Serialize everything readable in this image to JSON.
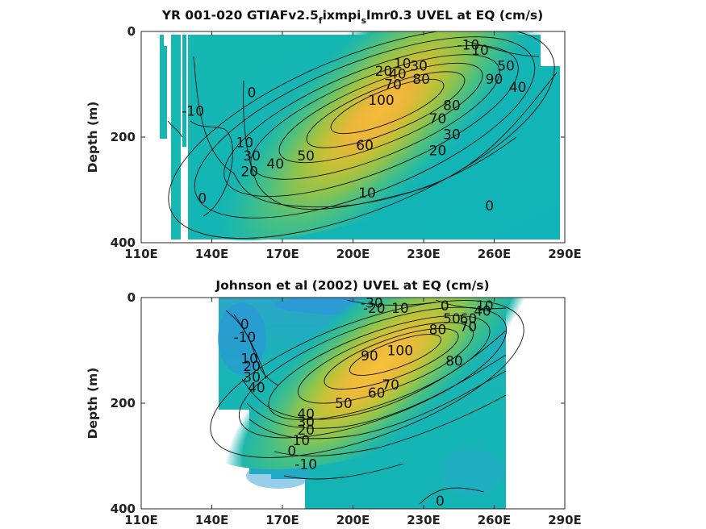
{
  "chart_data": [
    {
      "type": "contour",
      "title": "YR 001-020 GTIAFv2.5",
      "title_sub": "f",
      "title_mid": "ixmpi",
      "title_sub2": "s",
      "title_end": "lmr0.3 UVEL at EQ (cm/s)",
      "ylabel": "Depth (m)",
      "xlim": [
        110,
        290
      ],
      "ylim": [
        0,
        400
      ],
      "y_reversed": true,
      "xticks": [
        "110E",
        "140E",
        "170E",
        "200E",
        "230E",
        "260E",
        "290E"
      ],
      "yticks": [
        "0",
        "200",
        "400"
      ],
      "core": {
        "x": 215,
        "depth": 150,
        "max": 110
      },
      "contour_labels": [
        {
          "text": "-10",
          "x": 249,
          "depth": 25
        },
        {
          "text": "10",
          "x": 254,
          "depth": 35
        },
        {
          "text": "50",
          "x": 265,
          "depth": 65
        },
        {
          "text": "90",
          "x": 260,
          "depth": 90
        },
        {
          "text": "40",
          "x": 270,
          "depth": 105
        },
        {
          "text": "10",
          "x": 221,
          "depth": 60
        },
        {
          "text": "30",
          "x": 228,
          "depth": 65
        },
        {
          "text": "20",
          "x": 213,
          "depth": 75
        },
        {
          "text": "40",
          "x": 219,
          "depth": 80
        },
        {
          "text": "80",
          "x": 229,
          "depth": 90
        },
        {
          "text": "70",
          "x": 217,
          "depth": 100
        },
        {
          "text": "100",
          "x": 212,
          "depth": 130
        },
        {
          "text": "80",
          "x": 242,
          "depth": 140
        },
        {
          "text": "70",
          "x": 236,
          "depth": 165
        },
        {
          "text": "60",
          "x": 205,
          "depth": 215
        },
        {
          "text": "50",
          "x": 180,
          "depth": 235
        },
        {
          "text": "40",
          "x": 167,
          "depth": 250
        },
        {
          "text": "30",
          "x": 242,
          "depth": 195
        },
        {
          "text": "20",
          "x": 236,
          "depth": 225
        },
        {
          "text": "10",
          "x": 206,
          "depth": 305
        },
        {
          "text": "0",
          "x": 258,
          "depth": 330
        },
        {
          "text": "0",
          "x": 157,
          "depth": 115
        },
        {
          "text": "-10",
          "x": 132,
          "depth": 150
        },
        {
          "text": "10",
          "x": 154,
          "depth": 210
        },
        {
          "text": "30",
          "x": 157,
          "depth": 235
        },
        {
          "text": "20",
          "x": 156,
          "depth": 265
        },
        {
          "text": "0",
          "x": 136,
          "depth": 315
        }
      ]
    },
    {
      "type": "contour",
      "title": "Johnson et al (2002) UVEL at EQ (cm/s)",
      "ylabel": "Depth (m)",
      "xlim": [
        110,
        290
      ],
      "ylim": [
        0,
        400
      ],
      "y_reversed": true,
      "xticks": [
        "110E",
        "140E",
        "170E",
        "200E",
        "230E",
        "260E",
        "290E"
      ],
      "yticks": [
        "0",
        "200",
        "400"
      ],
      "core": {
        "x": 215,
        "depth": 140,
        "max": 100
      },
      "contour_labels": [
        {
          "text": "-30",
          "x": 208,
          "depth": 10
        },
        {
          "text": "-20",
          "x": 209,
          "depth": 20
        },
        {
          "text": "10",
          "x": 220,
          "depth": 20
        },
        {
          "text": "0",
          "x": 239,
          "depth": 15
        },
        {
          "text": "10",
          "x": 256,
          "depth": 15
        },
        {
          "text": "50",
          "x": 242,
          "depth": 40
        },
        {
          "text": "60",
          "x": 249,
          "depth": 40
        },
        {
          "text": "40",
          "x": 255,
          "depth": 25
        },
        {
          "text": "80",
          "x": 236,
          "depth": 60
        },
        {
          "text": "70",
          "x": 249,
          "depth": 55
        },
        {
          "text": "90",
          "x": 207,
          "depth": 110
        },
        {
          "text": "100",
          "x": 220,
          "depth": 100
        },
        {
          "text": "80",
          "x": 243,
          "depth": 120
        },
        {
          "text": "70",
          "x": 216,
          "depth": 165
        },
        {
          "text": "60",
          "x": 210,
          "depth": 180
        },
        {
          "text": "50",
          "x": 196,
          "depth": 200
        },
        {
          "text": "40",
          "x": 180,
          "depth": 220
        },
        {
          "text": "30",
          "x": 180,
          "depth": 235
        },
        {
          "text": "20",
          "x": 180,
          "depth": 250
        },
        {
          "text": "10",
          "x": 178,
          "depth": 270
        },
        {
          "text": "0",
          "x": 174,
          "depth": 290
        },
        {
          "text": "-10",
          "x": 180,
          "depth": 315
        },
        {
          "text": "0",
          "x": 237,
          "depth": 385
        },
        {
          "text": "0",
          "x": 154,
          "depth": 50
        },
        {
          "text": "-10",
          "x": 154,
          "depth": 75
        },
        {
          "text": "10",
          "x": 156,
          "depth": 115
        },
        {
          "text": "20",
          "x": 157,
          "depth": 130
        },
        {
          "text": "30",
          "x": 157,
          "depth": 150
        },
        {
          "text": "40",
          "x": 159,
          "depth": 170
        }
      ]
    }
  ]
}
